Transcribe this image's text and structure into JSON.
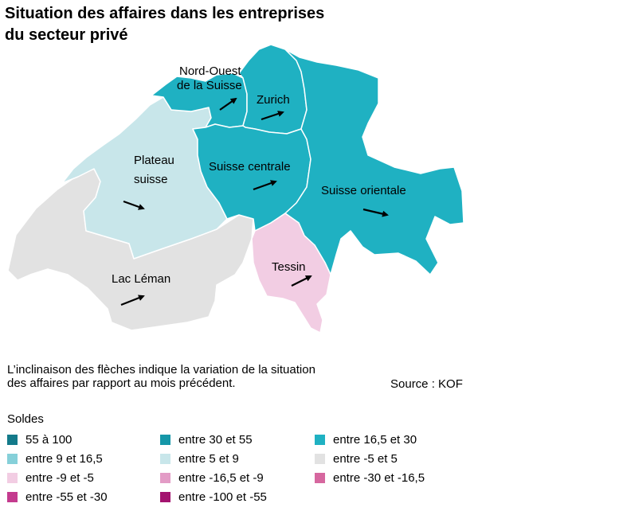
{
  "title": {
    "line1": "Situation des affaires dans les entreprises",
    "line2": "du secteur privé"
  },
  "regions": [
    {
      "id": "nord-ouest",
      "label_lines": [
        "Nord-Ouest",
        "de la Suisse"
      ],
      "category": "entre 16,5 et 30",
      "color": "#1fb1c2"
    },
    {
      "id": "zurich",
      "label_lines": [
        "Zurich"
      ],
      "category": "entre 16,5 et 30",
      "color": "#1fb1c2"
    },
    {
      "id": "suisse-centrale",
      "label_lines": [
        "Suisse centrale"
      ],
      "category": "entre 16,5 et 30",
      "color": "#1fb1c2"
    },
    {
      "id": "suisse-orientale",
      "label_lines": [
        "Suisse orientale"
      ],
      "category": "entre 16,5 et 30",
      "color": "#1fb1c2"
    },
    {
      "id": "plateau",
      "label_lines": [
        "Plateau",
        "suisse"
      ],
      "category": "entre 5 et 9",
      "color": "#c8e6ea"
    },
    {
      "id": "lac-leman",
      "label_lines": [
        "Lac Léman"
      ],
      "category": "entre -5 et 5",
      "color": "#e2e2e2"
    },
    {
      "id": "tessin",
      "label_lines": [
        "Tessin"
      ],
      "category": "entre -9 et -5",
      "color": "#f2cde3"
    }
  ],
  "note": {
    "line1": "L’inclinaison des flèches indique la variation de la situation",
    "line2": "des affaires par rapport au mois précédent."
  },
  "source": "Source : KOF",
  "legend": {
    "title": "Soldes",
    "items": [
      {
        "label": "55 à 100",
        "color": "#137a8a"
      },
      {
        "label": "entre 30 et 55",
        "color": "#1597a8"
      },
      {
        "label": "entre 16,5 et 30",
        "color": "#1fb1c2"
      },
      {
        "label": "entre 9 et 16,5",
        "color": "#86d0d9"
      },
      {
        "label": "entre 5 et 9",
        "color": "#c8e6ea"
      },
      {
        "label": "entre -5 et 5",
        "color": "#e2e2e2"
      },
      {
        "label": "entre -9 et -5",
        "color": "#f2cde3"
      },
      {
        "label": "entre -16,5 et -9",
        "color": "#e39cc6"
      },
      {
        "label": "entre -30 et -16,5",
        "color": "#d6679f"
      },
      {
        "label": "entre -55 et -30",
        "color": "#c43a8e"
      },
      {
        "label": "entre -100 et -55",
        "color": "#a3136f"
      }
    ]
  }
}
